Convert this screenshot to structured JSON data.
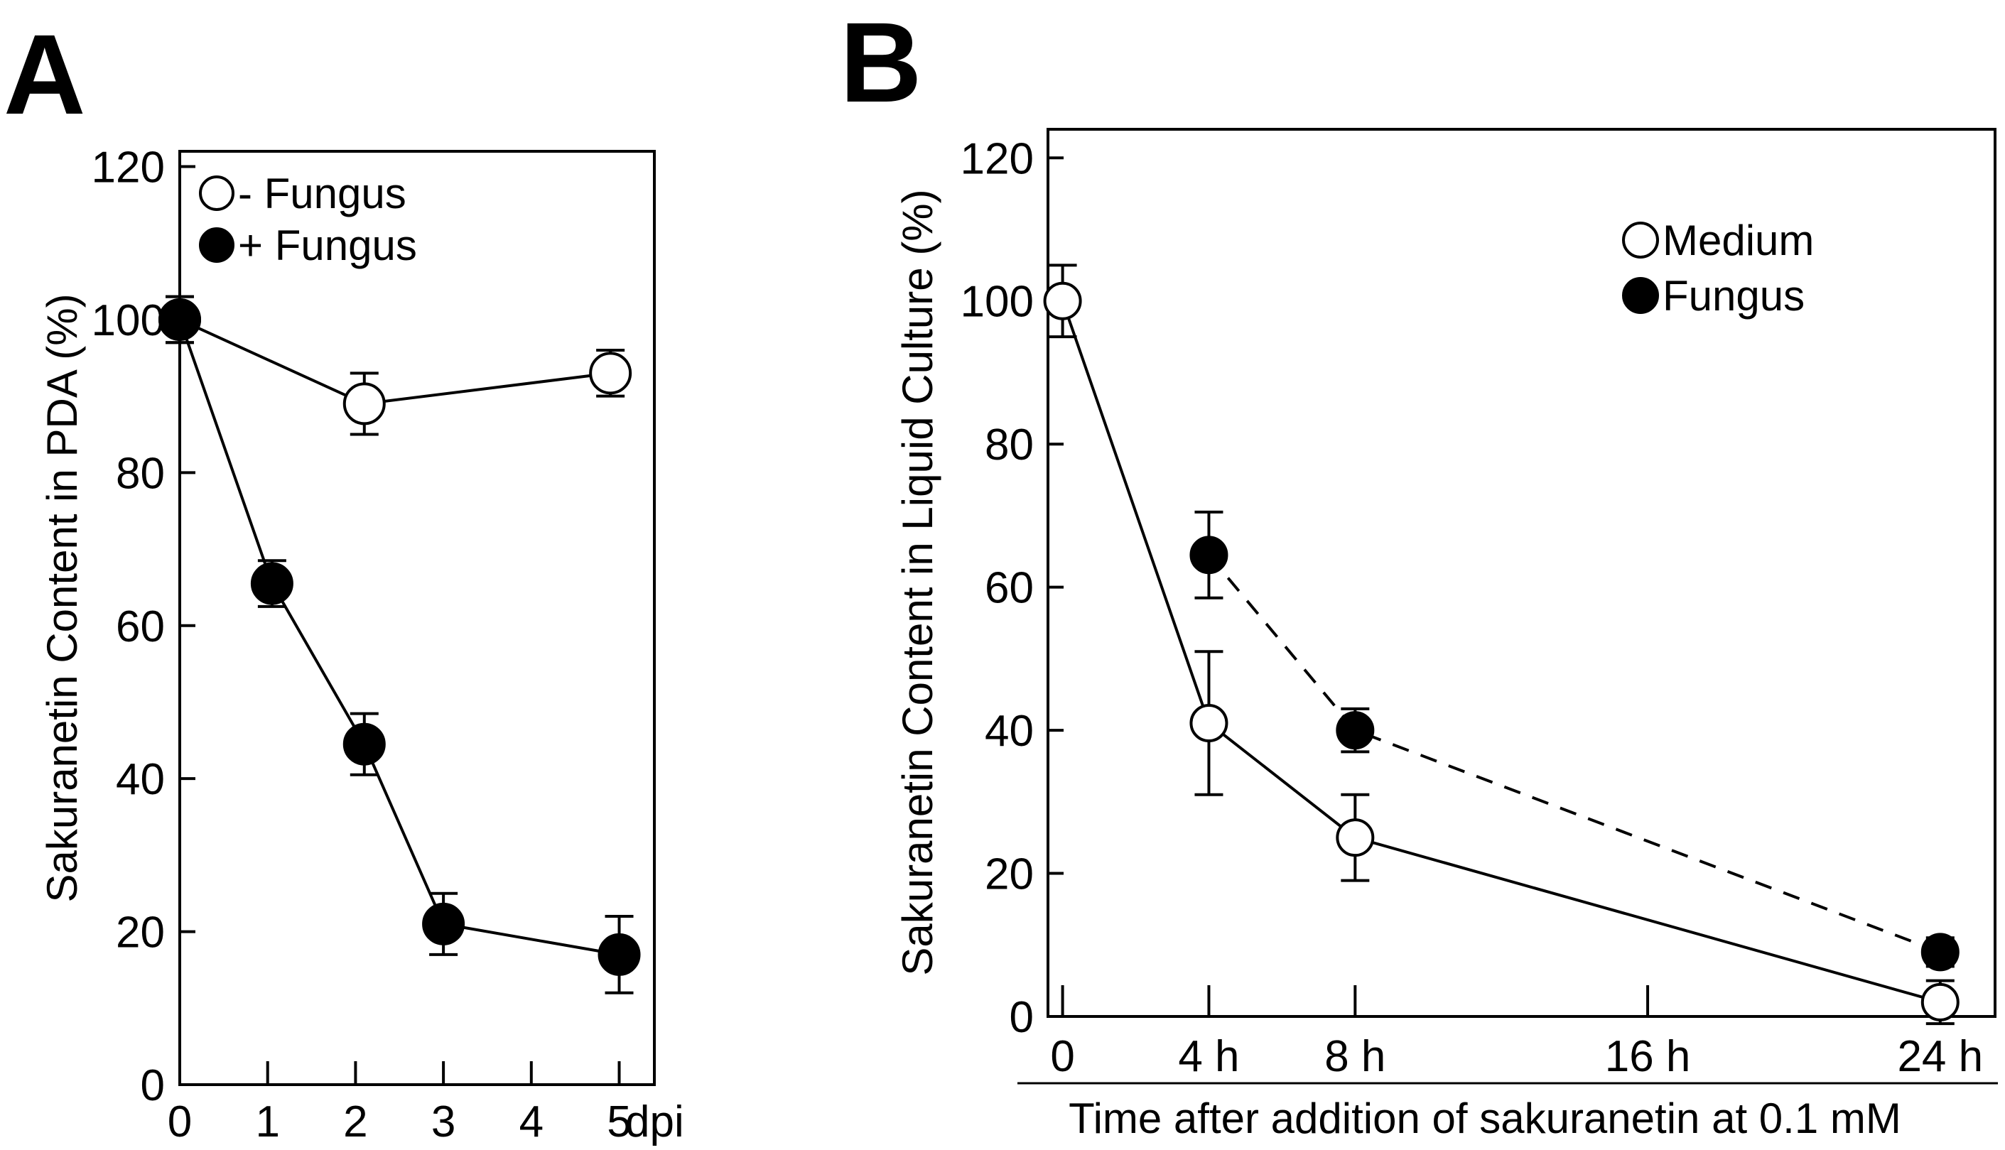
{
  "chart_data": [
    {
      "panel": "A",
      "type": "line",
      "title": "",
      "xlabel": "",
      "ylabel": "Sakuranetin   Content  in  PDA (%)",
      "xlim": [
        0,
        5.4
      ],
      "ylim": [
        0,
        122
      ],
      "x_ticks": [
        {
          "value": 0,
          "label": "0"
        },
        {
          "value": 1,
          "label": "1"
        },
        {
          "value": 2,
          "label": "2"
        },
        {
          "value": 3,
          "label": "3"
        },
        {
          "value": 4,
          "label": "4"
        },
        {
          "value": 5,
          "label": "5"
        }
      ],
      "x_unit_label": "dpi",
      "y_ticks": [
        0,
        20,
        40,
        60,
        80,
        100,
        120
      ],
      "legend_position": "top-left",
      "series": [
        {
          "name": "- Fungus",
          "marker": "open-circle",
          "line": "solid",
          "points": [
            {
              "x": 0,
              "y": 100,
              "err": 3
            },
            {
              "x": 2.1,
              "y": 89,
              "err": 4
            },
            {
              "x": 4.9,
              "y": 93,
              "err": 3
            }
          ]
        },
        {
          "name": "+ Fungus",
          "marker": "filled-circle",
          "line": "solid",
          "points": [
            {
              "x": 0,
              "y": 100,
              "err": 3
            },
            {
              "x": 1.05,
              "y": 65.5,
              "err": 3
            },
            {
              "x": 2.1,
              "y": 44.5,
              "err": 4
            },
            {
              "x": 3,
              "y": 21,
              "err": 4
            },
            {
              "x": 5,
              "y": 17,
              "err": 5
            }
          ]
        }
      ]
    },
    {
      "panel": "B",
      "type": "line",
      "title": "",
      "xlabel": "Time after addition of sakuranetin at 0.1 mM",
      "ylabel": "Sakuranetin Content in Liquid Culture (%)",
      "xlim": [
        -0.4,
        25.5
      ],
      "ylim": [
        0,
        124
      ],
      "x_ticks": [
        {
          "value": 0,
          "label": "0"
        },
        {
          "value": 4,
          "label": "4 h"
        },
        {
          "value": 8,
          "label": "8 h"
        },
        {
          "value": 16,
          "label": "16 h"
        },
        {
          "value": 24,
          "label": "24 h"
        }
      ],
      "y_ticks": [
        0,
        20,
        40,
        60,
        80,
        100,
        120
      ],
      "legend_position": "top-right",
      "series": [
        {
          "name": "Medium",
          "marker": "open-circle",
          "line": "solid",
          "points": [
            {
              "x": 0,
              "y": 100,
              "err": 5
            },
            {
              "x": 4,
              "y": 41,
              "err": 10
            },
            {
              "x": 8,
              "y": 25,
              "err": 6
            },
            {
              "x": 24,
              "y": 2,
              "err": 3
            }
          ]
        },
        {
          "name": "Fungus",
          "marker": "filled-circle",
          "line": "dashed",
          "points": [
            {
              "x": 4,
              "y": 64.5,
              "err": 6
            },
            {
              "x": 8,
              "y": 40,
              "err": 3
            },
            {
              "x": 24,
              "y": 9,
              "err": 2
            }
          ]
        }
      ]
    }
  ]
}
